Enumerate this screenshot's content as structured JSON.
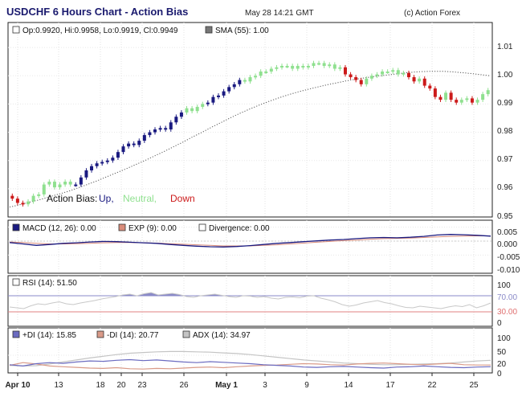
{
  "header": {
    "title": "USDCHF 6 Hours Chart - Action Bias",
    "timestamp": "May 28 14:21 GMT",
    "copyright": "(c) Action Forex"
  },
  "colors": {
    "up": "#1a1a80",
    "neutral": "#8fe08f",
    "down": "#cc1a1a",
    "sma": "#555555",
    "macd": "#1a1a80",
    "exp": "#d98c7a",
    "rsi_fill": "#8a8ac8",
    "di_plus": "#6b6bc0",
    "di_minus": "#d99a88",
    "adx": "#c4c4c4"
  },
  "chart_data": [
    {
      "type": "candlestick",
      "panel": "price",
      "ohlc_legend": "Op:0.9920, Hi:0.9958, Lo:0.9919, Cl:0.9949",
      "sma_legend": "SMA (55): 1.00",
      "bias_legend": {
        "label": "Action Bias:",
        "up": "Up,",
        "neutral": "Neutral,",
        "down": "Down"
      },
      "ylim": [
        0.95,
        1.02
      ],
      "yticks": [
        "1.01",
        "1.00",
        "0.99",
        "0.98",
        "0.97",
        "0.96",
        "0.95"
      ],
      "xticks": [
        "Apr 10",
        "13",
        "18",
        "20",
        "23",
        "26",
        "May 1",
        "3",
        "9",
        "14",
        "17",
        "22",
        "25"
      ],
      "close_series": [
        0.9565,
        0.955,
        0.9545,
        0.9555,
        0.9575,
        0.958,
        0.9615,
        0.9625,
        0.9605,
        0.9615,
        0.9625,
        0.9615,
        0.9615,
        0.964,
        0.9665,
        0.968,
        0.969,
        0.9695,
        0.97,
        0.971,
        0.973,
        0.975,
        0.976,
        0.9755,
        0.977,
        0.979,
        0.98,
        0.981,
        0.9815,
        0.981,
        0.9835,
        0.9855,
        0.987,
        0.9885,
        0.9875,
        0.989,
        0.99,
        0.9905,
        0.9925,
        0.993,
        0.9945,
        0.996,
        0.997,
        0.9985,
        0.998,
        0.9995,
        1.0,
        1.0015,
        1.0015,
        1.0025,
        1.003,
        1.0035,
        1.0035,
        1.0025,
        1.0035,
        1.003,
        1.0035,
        1.0045,
        1.0045,
        1.0035,
        1.004,
        1.0025,
        1.003,
        1.0005,
        0.9995,
        0.9985,
        0.997,
        0.999,
        1.0,
        1.0005,
        1.0015,
        1.0015,
        1.002,
        1.0005,
        1.001,
        0.9995,
        0.998,
        0.999,
        0.9965,
        0.9955,
        0.9925,
        0.9915,
        0.994,
        0.9915,
        0.9905,
        0.9915,
        0.992,
        0.9905,
        0.9915,
        0.9935,
        0.9949
      ],
      "bias_series": [
        "D",
        "D",
        "D",
        "N",
        "N",
        "N",
        "N",
        "N",
        "N",
        "N",
        "N",
        "N",
        "U",
        "U",
        "U",
        "U",
        "U",
        "U",
        "U",
        "U",
        "U",
        "U",
        "U",
        "U",
        "U",
        "U",
        "U",
        "U",
        "U",
        "U",
        "U",
        "U",
        "U",
        "N",
        "N",
        "N",
        "N",
        "U",
        "U",
        "U",
        "U",
        "U",
        "U",
        "U",
        "N",
        "N",
        "N",
        "N",
        "N",
        "N",
        "N",
        "N",
        "N",
        "N",
        "N",
        "N",
        "N",
        "N",
        "N",
        "N",
        "N",
        "N",
        "N",
        "D",
        "D",
        "D",
        "D",
        "N",
        "N",
        "N",
        "N",
        "N",
        "N",
        "N",
        "N",
        "D",
        "D",
        "N",
        "D",
        "D",
        "D",
        "D",
        "N",
        "D",
        "D",
        "N",
        "N",
        "D",
        "N",
        "N",
        "N"
      ],
      "sma_series": [
        0.9535,
        0.9543,
        0.9552,
        0.956,
        0.957,
        0.958,
        0.959,
        0.9602,
        0.9614,
        0.9627,
        0.9641,
        0.9655,
        0.9669,
        0.9684,
        0.9699,
        0.9715,
        0.9731,
        0.9748,
        0.9765,
        0.9783,
        0.98,
        0.9818,
        0.9835,
        0.9852,
        0.9868,
        0.9883,
        0.9897,
        0.991,
        0.9922,
        0.9933,
        0.9943,
        0.9952,
        0.996,
        0.9968,
        0.9975,
        0.9982,
        0.9988,
        0.9993,
        0.9998,
        1.0002,
        1.0006,
        1.001,
        1.0013,
        1.0015,
        1.0016,
        1.0016,
        1.0014,
        1.0011,
        1.0008,
        1.0004,
        1.0
      ]
    },
    {
      "type": "line",
      "panel": "macd",
      "legend": [
        "MACD (12, 26): 0.00",
        "EXP (9): 0.00",
        "Divergence: 0.00"
      ],
      "yticks": [
        "0.005",
        "0.000",
        "-0.005",
        "-0.010"
      ],
      "ylim": [
        -0.0115,
        0.0075
      ],
      "macd": [
        -0.0005,
        -0.001,
        -0.0015,
        -0.0012,
        -0.0008,
        -0.0006,
        -0.0003,
        -0.0001,
        -0.0002,
        -0.0004,
        -0.0006,
        -0.0008,
        -0.0012,
        -0.0015,
        -0.0018,
        -0.002,
        -0.0021,
        -0.0019,
        -0.0016,
        -0.0012,
        -0.0008,
        -0.0005,
        -0.0002,
        0.0001,
        0.0004,
        0.0006,
        0.0009,
        0.0012,
        0.0013,
        0.0012,
        0.0014,
        0.0017,
        0.0022,
        0.0024,
        0.0023,
        0.0021,
        0.0018
      ],
      "exp": [
        -0.0003,
        -0.0005,
        -0.0008,
        -0.001,
        -0.001,
        -0.0009,
        -0.0008,
        -0.0006,
        -0.0005,
        -0.0005,
        -0.0006,
        -0.0007,
        -0.0009,
        -0.0011,
        -0.0013,
        -0.0015,
        -0.0017,
        -0.0017,
        -0.0017,
        -0.0015,
        -0.0013,
        -0.001,
        -0.0007,
        -0.0004,
        -0.0001,
        0.0002,
        0.0004,
        0.0007,
        0.0009,
        0.001,
        0.0011,
        0.0013,
        0.0015,
        0.0017,
        0.0018,
        0.0019,
        0.0019
      ]
    },
    {
      "type": "area",
      "panel": "rsi",
      "legend": "RSI (14): 51.50",
      "yticks": [
        "100",
        "70.00",
        "30.00",
        "0"
      ],
      "levels": [
        70,
        30
      ],
      "ylim": [
        0,
        100
      ],
      "rsi": [
        42,
        40,
        38,
        45,
        50,
        48,
        52,
        55,
        50,
        48,
        52,
        55,
        58,
        62,
        65,
        68,
        72,
        74,
        70,
        75,
        78,
        72,
        74,
        76,
        73,
        68,
        66,
        70,
        72,
        74,
        71,
        68,
        66,
        70,
        69,
        66,
        68,
        64,
        62,
        66,
        67,
        65,
        69,
        70,
        64,
        60,
        55,
        48,
        44,
        47,
        52,
        55,
        58,
        53,
        50,
        45,
        41,
        40,
        44,
        42,
        40,
        38,
        42,
        45,
        43,
        48,
        40,
        45,
        52
      ]
    },
    {
      "type": "line",
      "panel": "dmi",
      "legend": [
        "+DI (14): 15.85",
        "-DI (14): 20.77",
        "ADX (14): 34.97"
      ],
      "yticks": [
        "100",
        "50",
        "20",
        "0"
      ],
      "ylim": [
        0,
        100
      ],
      "di_plus": [
        22,
        18,
        25,
        28,
        26,
        30,
        33,
        32,
        35,
        37,
        34,
        36,
        33,
        30,
        28,
        31,
        29,
        27,
        25,
        22,
        20,
        18,
        15,
        14,
        16,
        17,
        15,
        13,
        12,
        15,
        16,
        18,
        16,
        14,
        13,
        15,
        16
      ],
      "di_minus": [
        20,
        28,
        24,
        18,
        16,
        14,
        12,
        11,
        13,
        10,
        9,
        11,
        10,
        12,
        14,
        15,
        13,
        16,
        18,
        20,
        21,
        23,
        25,
        24,
        22,
        21,
        24,
        26,
        27,
        25,
        23,
        22,
        24,
        26,
        22,
        21,
        21
      ],
      "adx": [
        20,
        18,
        19,
        24,
        30,
        36,
        42,
        47,
        52,
        56,
        58,
        60,
        61,
        61,
        60,
        59,
        57,
        55,
        52,
        48,
        44,
        40,
        36,
        33,
        30,
        27,
        25,
        23,
        22,
        22,
        23,
        24,
        25,
        27,
        30,
        33,
        35
      ]
    }
  ]
}
